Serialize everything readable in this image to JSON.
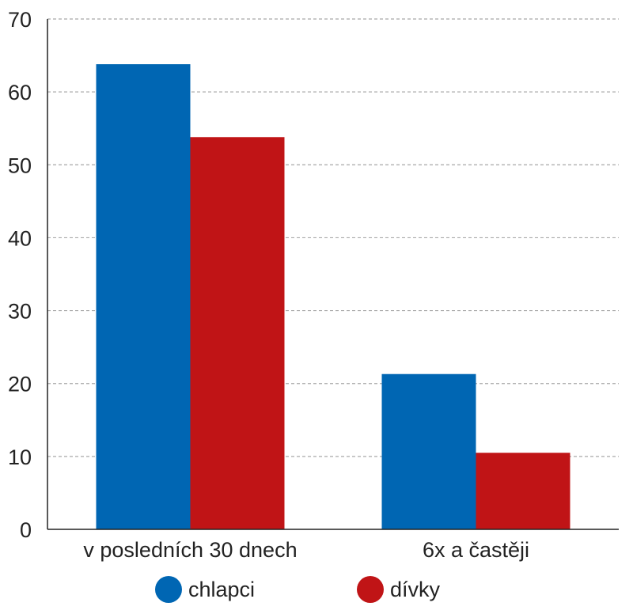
{
  "chart_data": {
    "type": "bar",
    "title": "",
    "xlabel": "",
    "ylabel": "",
    "ylim": [
      0,
      70
    ],
    "yticks": [
      0,
      10,
      20,
      30,
      40,
      50,
      60,
      70
    ],
    "grid": true,
    "categories": [
      "v posledních 30 dnech",
      "6x a častěji"
    ],
    "series": [
      {
        "name": "chlapci",
        "color": "#0066b3",
        "values": [
          63.8,
          21.3
        ]
      },
      {
        "name": "dívky",
        "color": "#c01416",
        "values": [
          53.8,
          10.5
        ]
      }
    ],
    "legend_position": "bottom"
  }
}
